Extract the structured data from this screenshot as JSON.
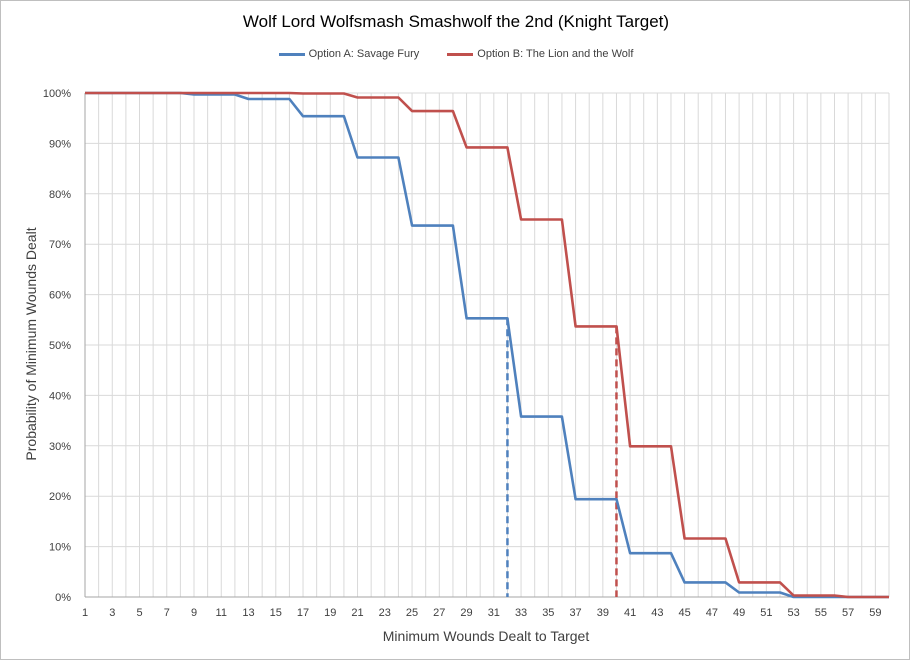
{
  "chart_data": {
    "type": "line",
    "title": "Wolf Lord Wolfsmash Smashwolf the 2nd (Knight Target)",
    "xlabel": "Minimum Wounds Dealt  to Target",
    "ylabel": "Probability of Minimum Wounds Dealt",
    "xlim": [
      1,
      60
    ],
    "ylim": [
      0,
      100
    ],
    "y_ticks": [
      "0%",
      "10%",
      "20%",
      "30%",
      "40%",
      "50%",
      "60%",
      "70%",
      "80%",
      "90%",
      "100%"
    ],
    "x_tick_labels": [
      "1",
      "3",
      "5",
      "7",
      "9",
      "11",
      "13",
      "15",
      "17",
      "19",
      "21",
      "23",
      "25",
      "27",
      "29",
      "31",
      "33",
      "35",
      "37",
      "39",
      "41",
      "43",
      "45",
      "47",
      "49",
      "51",
      "53",
      "55",
      "57",
      "59"
    ],
    "grid": true,
    "legend_position": "top",
    "series": [
      {
        "name": "Option A: Savage Fury",
        "color": "#4f81bd",
        "x": [
          1,
          8,
          9,
          12,
          13,
          16,
          17,
          20,
          21,
          24,
          25,
          28,
          29,
          32,
          33,
          36,
          37,
          40,
          41,
          44,
          45,
          48,
          49,
          52,
          53,
          60
        ],
        "values": [
          100,
          100,
          99.7,
          99.7,
          98.8,
          98.8,
          95.4,
          95.4,
          87.2,
          87.2,
          73.7,
          73.7,
          55.3,
          55.3,
          35.8,
          35.8,
          19.4,
          19.4,
          8.7,
          8.7,
          2.9,
          2.9,
          0.9,
          0.9,
          0,
          0
        ]
      },
      {
        "name": "Option B: The Lion and the Wolf",
        "color": "#c0504d",
        "x": [
          1,
          12,
          13,
          16,
          17,
          20,
          21,
          24,
          25,
          28,
          29,
          32,
          33,
          36,
          37,
          40,
          41,
          44,
          45,
          48,
          49,
          52,
          53,
          56,
          57,
          60
        ],
        "values": [
          100,
          100,
          100,
          100,
          99.9,
          99.9,
          99.1,
          99.1,
          96.4,
          96.4,
          89.2,
          89.2,
          74.9,
          74.9,
          53.7,
          53.7,
          29.9,
          29.9,
          11.6,
          11.6,
          2.9,
          2.9,
          0.3,
          0.3,
          0,
          0
        ]
      }
    ],
    "reference_lines": [
      {
        "series": "Option A: Savage Fury",
        "x": 32,
        "y": 55.3,
        "color": "#4f81bd",
        "style": "dashed"
      },
      {
        "series": "Option B: The Lion and the Wolf",
        "x": 40,
        "y": 53.7,
        "color": "#c0504d",
        "style": "dashed"
      }
    ]
  }
}
